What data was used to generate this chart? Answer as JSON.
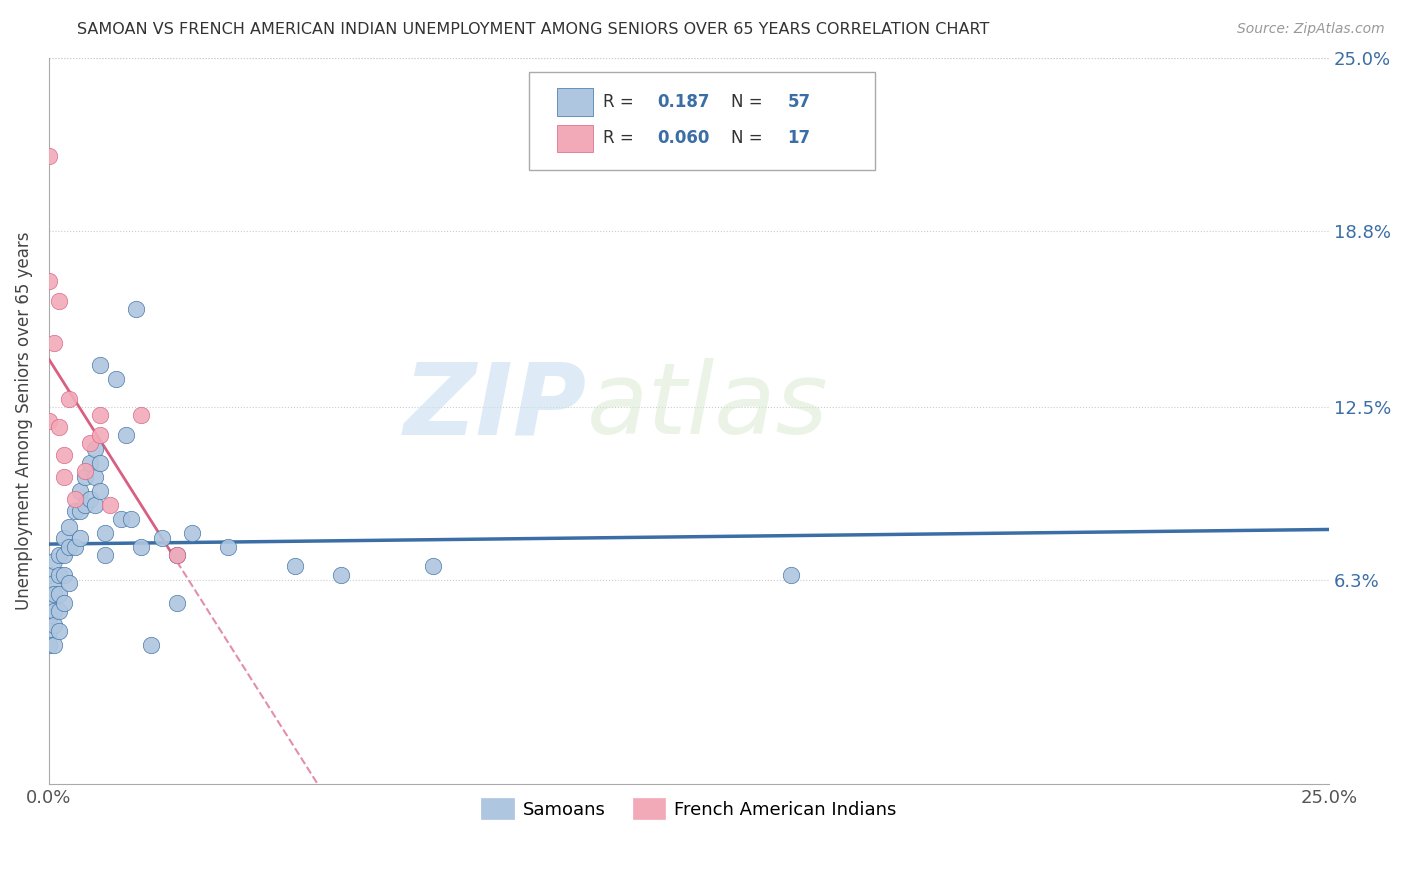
{
  "title": "SAMOAN VS FRENCH AMERICAN INDIAN UNEMPLOYMENT AMONG SENIORS OVER 65 YEARS CORRELATION CHART",
  "source": "Source: ZipAtlas.com",
  "ylabel": "Unemployment Among Seniors over 65 years",
  "xlim": [
    0.0,
    0.25
  ],
  "ylim": [
    -0.01,
    0.25
  ],
  "ytick_vals": [
    0.063,
    0.125,
    0.188,
    0.25
  ],
  "ytick_labels": [
    "6.3%",
    "12.5%",
    "18.8%",
    "25.0%"
  ],
  "samoan_color": "#aec6df",
  "french_color": "#f2aab8",
  "samoan_line_color": "#3a6ea5",
  "french_line_color": "#d95f82",
  "legend_label_samoan": "Samoans",
  "legend_label_french": "French American Indians",
  "R_samoan": "0.187",
  "N_samoan": "57",
  "R_french": "0.060",
  "N_french": "17",
  "watermark_zip": "ZIP",
  "watermark_atlas": "atlas",
  "samoan_x": [
    0.0,
    0.0,
    0.0,
    0.0,
    0.0,
    0.0,
    0.001,
    0.001,
    0.001,
    0.001,
    0.001,
    0.001,
    0.002,
    0.002,
    0.002,
    0.002,
    0.002,
    0.003,
    0.003,
    0.003,
    0.003,
    0.004,
    0.004,
    0.004,
    0.005,
    0.005,
    0.006,
    0.006,
    0.006,
    0.007,
    0.007,
    0.008,
    0.008,
    0.009,
    0.009,
    0.009,
    0.01,
    0.01,
    0.01,
    0.011,
    0.011,
    0.013,
    0.014,
    0.015,
    0.016,
    0.017,
    0.018,
    0.02,
    0.022,
    0.025,
    0.025,
    0.028,
    0.035,
    0.048,
    0.057,
    0.075,
    0.145
  ],
  "samoan_y": [
    0.065,
    0.058,
    0.055,
    0.05,
    0.045,
    0.04,
    0.07,
    0.062,
    0.058,
    0.052,
    0.047,
    0.04,
    0.072,
    0.065,
    0.058,
    0.052,
    0.045,
    0.078,
    0.072,
    0.065,
    0.055,
    0.082,
    0.075,
    0.062,
    0.088,
    0.075,
    0.095,
    0.088,
    0.078,
    0.1,
    0.09,
    0.105,
    0.092,
    0.11,
    0.1,
    0.09,
    0.14,
    0.105,
    0.095,
    0.08,
    0.072,
    0.135,
    0.085,
    0.115,
    0.085,
    0.16,
    0.075,
    0.04,
    0.078,
    0.072,
    0.055,
    0.08,
    0.075,
    0.068,
    0.065,
    0.068,
    0.065
  ],
  "french_x": [
    0.0,
    0.0,
    0.0,
    0.001,
    0.002,
    0.002,
    0.003,
    0.003,
    0.004,
    0.005,
    0.007,
    0.008,
    0.01,
    0.01,
    0.012,
    0.018,
    0.025
  ],
  "french_y": [
    0.215,
    0.17,
    0.12,
    0.148,
    0.163,
    0.118,
    0.108,
    0.1,
    0.128,
    0.092,
    0.102,
    0.112,
    0.122,
    0.115,
    0.09,
    0.122,
    0.072
  ]
}
